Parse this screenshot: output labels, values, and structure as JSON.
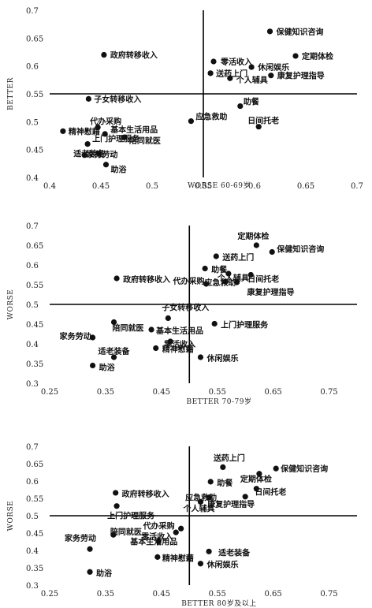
{
  "chart_data": [
    {
      "type": "scatter",
      "xlabel": "WORSE 60-69岁",
      "ylabel": "BETTER",
      "xlim": [
        0.4,
        0.7
      ],
      "ylim": [
        0.4,
        0.7
      ],
      "xticks": [
        "0.4",
        "0.45",
        "0.5",
        "0.55",
        "0.6",
        "0.65",
        "0.7"
      ],
      "yticks": [
        "0.4",
        "0.45",
        "0.5",
        "0.55",
        "0.6",
        "0.65",
        "0.7"
      ],
      "divider_x": 0.55,
      "divider_y": 0.55,
      "points": [
        {
          "label": "保健知识咨询",
          "x": 0.615,
          "y": 0.662
        },
        {
          "label": "政府转移收入",
          "x": 0.453,
          "y": 0.62
        },
        {
          "label": "定期体检",
          "x": 0.64,
          "y": 0.618
        },
        {
          "label": "零活收入",
          "x": 0.56,
          "y": 0.608
        },
        {
          "label": "休闲娱乐",
          "x": 0.597,
          "y": 0.598
        },
        {
          "label": "送药上门",
          "x": 0.557,
          "y": 0.587
        },
        {
          "label": "个人辅具",
          "x": 0.576,
          "y": 0.578
        },
        {
          "label": "康复护理指导",
          "x": 0.616,
          "y": 0.583
        },
        {
          "label": "子女转移收入",
          "x": 0.438,
          "y": 0.541
        },
        {
          "label": "助餐",
          "x": 0.586,
          "y": 0.528
        },
        {
          "label": "应急救助",
          "x": 0.538,
          "y": 0.501
        },
        {
          "label": "日间托老",
          "x": 0.604,
          "y": 0.491
        },
        {
          "label": "代办采购",
          "x": 0.447,
          "y": 0.49
        },
        {
          "label": "精神慰藉",
          "x": 0.413,
          "y": 0.483
        },
        {
          "label": "基本生活用品",
          "x": 0.454,
          "y": 0.478
        },
        {
          "label": "陪同就医",
          "x": 0.473,
          "y": 0.472
        },
        {
          "label": "上门护理服务",
          "x": 0.437,
          "y": 0.46
        },
        {
          "label": "家务劳动",
          "x": 0.448,
          "y": 0.443
        },
        {
          "label": "适老装备",
          "x": 0.434,
          "y": 0.44
        },
        {
          "label": "助浴",
          "x": 0.455,
          "y": 0.423
        }
      ]
    },
    {
      "type": "scatter",
      "xlabel": "BETTER 70-79岁",
      "ylabel": "WORSE",
      "xlim": [
        0.25,
        0.8
      ],
      "ylim": [
        0.3,
        0.7
      ],
      "xticks": [
        "0.25",
        "0.35",
        "0.45",
        "0.55",
        "0.65",
        "0.75"
      ],
      "yticks": [
        "0.3",
        "0.35",
        "0.4",
        "0.45",
        "0.5",
        "0.55",
        "0.6",
        "0.65",
        "0.7"
      ],
      "divider_x": 0.5,
      "divider_y": 0.5,
      "points": [
        {
          "label": "定期体检",
          "x": 0.62,
          "y": 0.65
        },
        {
          "label": "保健知识咨询",
          "x": 0.648,
          "y": 0.633
        },
        {
          "label": "送药上门",
          "x": 0.548,
          "y": 0.622
        },
        {
          "label": "助餐",
          "x": 0.528,
          "y": 0.591
        },
        {
          "label": "个人辅具",
          "x": 0.57,
          "y": 0.578
        },
        {
          "label": "日间托老",
          "x": 0.61,
          "y": 0.575
        },
        {
          "label": "应急救助",
          "x": 0.565,
          "y": 0.558
        },
        {
          "label": "政府转移收入",
          "x": 0.37,
          "y": 0.566
        },
        {
          "label": "代办采购",
          "x": 0.53,
          "y": 0.552
        },
        {
          "label": "康复护理指导",
          "x": 0.585,
          "y": 0.556
        },
        {
          "label": "子女转移收入",
          "x": 0.462,
          "y": 0.465
        },
        {
          "label": "陪同就医",
          "x": 0.365,
          "y": 0.455
        },
        {
          "label": "上门护理服务",
          "x": 0.545,
          "y": 0.451
        },
        {
          "label": "基本生活用品",
          "x": 0.432,
          "y": 0.436
        },
        {
          "label": "家务劳动",
          "x": 0.327,
          "y": 0.416
        },
        {
          "label": "零活收入",
          "x": 0.466,
          "y": 0.406
        },
        {
          "label": "精神慰藉",
          "x": 0.44,
          "y": 0.389
        },
        {
          "label": "适老装备",
          "x": 0.365,
          "y": 0.366
        },
        {
          "label": "休闲娱乐",
          "x": 0.52,
          "y": 0.366
        },
        {
          "label": "助浴",
          "x": 0.327,
          "y": 0.345
        }
      ]
    },
    {
      "type": "scatter",
      "xlabel": "BETTER 80岁及以上",
      "ylabel": "WORSE",
      "xlim": [
        0.25,
        0.8
      ],
      "ylim": [
        0.3,
        0.7
      ],
      "xticks": [
        "0.25",
        "0.35",
        "0.45",
        "0.55",
        "0.65",
        "0.75"
      ],
      "yticks": [
        "0.3",
        "0.35",
        "0.4",
        "0.45",
        "0.5",
        "0.55",
        "0.6",
        "0.65",
        "0.7"
      ],
      "divider_x": 0.5,
      "divider_y": 0.5,
      "points": [
        {
          "label": "送药上门",
          "x": 0.56,
          "y": 0.64
        },
        {
          "label": "保健知识咨询",
          "x": 0.655,
          "y": 0.636
        },
        {
          "label": "定期体检",
          "x": 0.625,
          "y": 0.621
        },
        {
          "label": "助餐",
          "x": 0.538,
          "y": 0.598
        },
        {
          "label": "日间托老",
          "x": 0.62,
          "y": 0.578
        },
        {
          "label": "政府转移收入",
          "x": 0.368,
          "y": 0.566
        },
        {
          "label": "应急救助",
          "x": 0.535,
          "y": 0.553
        },
        {
          "label": "个人辅具",
          "x": 0.52,
          "y": 0.54
        },
        {
          "label": "康复护理指导",
          "x": 0.6,
          "y": 0.555
        },
        {
          "label": "上门护理服务",
          "x": 0.37,
          "y": 0.528
        },
        {
          "label": "代办采购",
          "x": 0.485,
          "y": 0.463
        },
        {
          "label": "零活收入",
          "x": 0.476,
          "y": 0.452
        },
        {
          "label": "陪同就医",
          "x": 0.364,
          "y": 0.445
        },
        {
          "label": "基本生活用品",
          "x": 0.445,
          "y": 0.426
        },
        {
          "label": "家务劳动",
          "x": 0.322,
          "y": 0.404
        },
        {
          "label": "适老装备",
          "x": 0.535,
          "y": 0.397
        },
        {
          "label": "精神慰藉",
          "x": 0.443,
          "y": 0.381
        },
        {
          "label": "休闲娱乐",
          "x": 0.52,
          "y": 0.362
        },
        {
          "label": "助浴",
          "x": 0.322,
          "y": 0.338
        }
      ]
    }
  ]
}
